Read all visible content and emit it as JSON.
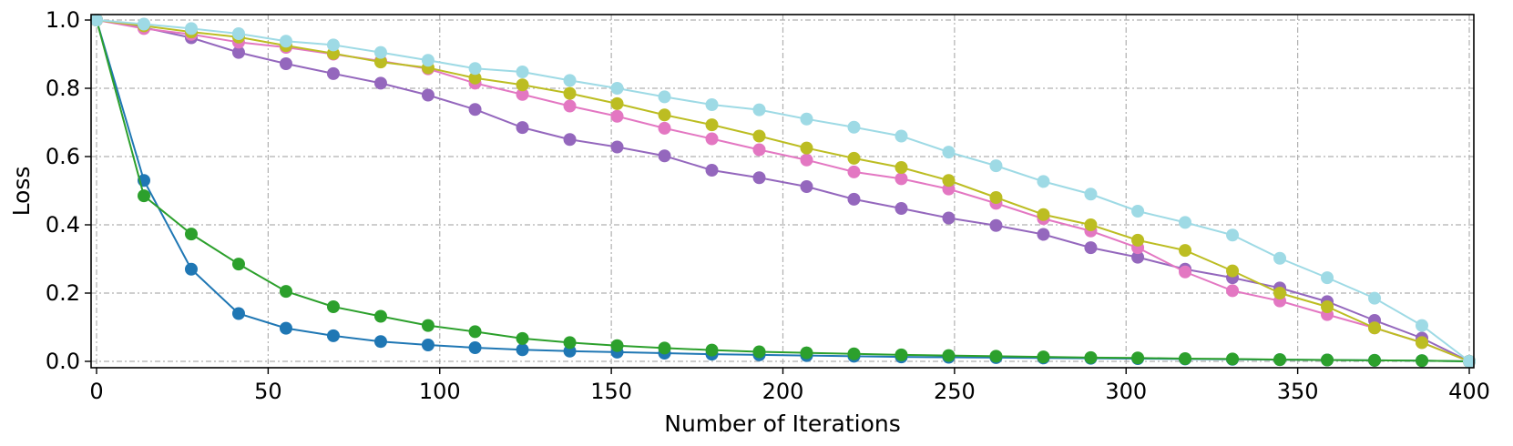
{
  "chart_data": {
    "type": "line",
    "title": "",
    "xlabel": "Number of Iterations",
    "ylabel": "Loss",
    "xlim": [
      0,
      400
    ],
    "ylim": [
      0,
      1.0
    ],
    "grid": true,
    "x_ticks": [
      0,
      50,
      100,
      150,
      200,
      250,
      300,
      350,
      400
    ],
    "y_ticks": [
      "0.0",
      "0.2",
      "0.4",
      "0.6",
      "0.8",
      "1.0"
    ],
    "x": [
      0,
      13.8,
      27.6,
      41.4,
      55.2,
      69.0,
      82.8,
      96.6,
      110.3,
      124.1,
      137.9,
      151.7,
      165.5,
      179.3,
      193.1,
      206.9,
      220.7,
      234.5,
      248.3,
      262.1,
      275.9,
      289.7,
      303.4,
      317.2,
      331.0,
      344.8,
      358.6,
      372.4,
      386.2,
      400
    ],
    "series": [
      {
        "name": "blue",
        "color": "#1f77b4",
        "values": [
          1.0,
          0.53,
          0.27,
          0.14,
          0.097,
          0.075,
          0.058,
          0.048,
          0.04,
          0.034,
          0.03,
          0.027,
          0.024,
          0.021,
          0.019,
          0.017,
          0.015,
          0.013,
          0.012,
          0.011,
          0.01,
          0.009,
          0.008,
          0.007,
          0.006,
          0.005,
          0.004,
          0.003,
          0.002,
          0.0
        ]
      },
      {
        "name": "green",
        "color": "#2ca02c",
        "values": [
          1.0,
          0.485,
          0.373,
          0.285,
          0.205,
          0.16,
          0.132,
          0.105,
          0.087,
          0.067,
          0.055,
          0.046,
          0.039,
          0.033,
          0.028,
          0.025,
          0.022,
          0.019,
          0.017,
          0.015,
          0.013,
          0.011,
          0.01,
          0.008,
          0.007,
          0.005,
          0.004,
          0.003,
          0.002,
          0.0
        ]
      },
      {
        "name": "purple",
        "color": "#9467bd",
        "values": [
          1.0,
          0.978,
          0.948,
          0.905,
          0.872,
          0.843,
          0.815,
          0.78,
          0.738,
          0.685,
          0.65,
          0.628,
          0.602,
          0.56,
          0.538,
          0.512,
          0.475,
          0.448,
          0.42,
          0.398,
          0.372,
          0.333,
          0.305,
          0.27,
          0.245,
          0.215,
          0.175,
          0.12,
          0.068,
          0.0
        ]
      },
      {
        "name": "pink",
        "color": "#e377c2",
        "values": [
          1.0,
          0.975,
          0.958,
          0.935,
          0.92,
          0.9,
          0.88,
          0.857,
          0.815,
          0.782,
          0.748,
          0.718,
          0.683,
          0.652,
          0.62,
          0.59,
          0.555,
          0.535,
          0.505,
          0.463,
          0.418,
          0.382,
          0.333,
          0.262,
          0.207,
          0.177,
          0.137,
          0.098,
          0.055,
          0.0
        ]
      },
      {
        "name": "olive",
        "color": "#bcbd22",
        "values": [
          1.0,
          0.983,
          0.965,
          0.95,
          0.925,
          0.902,
          0.877,
          0.86,
          0.83,
          0.81,
          0.785,
          0.755,
          0.722,
          0.693,
          0.66,
          0.625,
          0.595,
          0.568,
          0.53,
          0.48,
          0.43,
          0.4,
          0.355,
          0.325,
          0.265,
          0.2,
          0.16,
          0.098,
          0.055,
          0.0
        ]
      },
      {
        "name": "cyan",
        "color": "#9edae5",
        "values": [
          1.0,
          0.988,
          0.975,
          0.96,
          0.938,
          0.927,
          0.905,
          0.882,
          0.858,
          0.848,
          0.823,
          0.8,
          0.775,
          0.752,
          0.737,
          0.71,
          0.686,
          0.66,
          0.613,
          0.573,
          0.527,
          0.49,
          0.44,
          0.407,
          0.37,
          0.302,
          0.245,
          0.185,
          0.105,
          0.0
        ]
      }
    ]
  }
}
